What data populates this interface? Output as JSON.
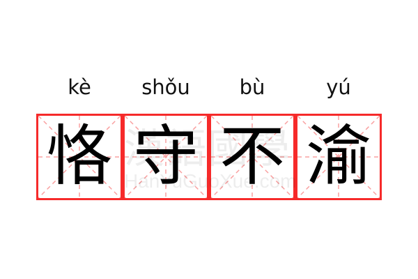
{
  "characters": [
    {
      "pinyin": "kè",
      "hanzi": "恪"
    },
    {
      "pinyin": "shǒu",
      "hanzi": "守"
    },
    {
      "pinyin": "bù",
      "hanzi": "不"
    },
    {
      "pinyin": "yú",
      "hanzi": "渝"
    }
  ],
  "watermark": {
    "chinese": "漢語國學",
    "latin": "HanYuGuoXue.com"
  },
  "colors": {
    "grid_border": "#f62a2a",
    "guide_lines": "#f9a0a0",
    "text": "#000000"
  }
}
